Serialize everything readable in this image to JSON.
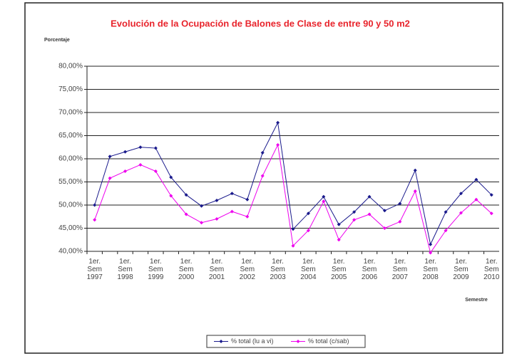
{
  "chart_data": {
    "type": "line",
    "title": "Evolución de la Ocupación de Balones de Clase de entre 90 y 50 m2",
    "y_label": "Porcentaje",
    "x_label": "Semestre",
    "categories": [
      "1er. Sem 1997",
      null,
      "1er. Sem 1998",
      null,
      "1er. Sem 1999",
      null,
      "1er. Sem 2000",
      null,
      "1er. Sem 2001",
      null,
      "1er. Sem 2002",
      null,
      "1er. Sem 2003",
      null,
      "1er. Sem 2004",
      null,
      "1er. Sem 2005",
      null,
      "1er. Sem 2006",
      null,
      "1er. Sem 2007",
      null,
      "1er. Sem 2008",
      null,
      "1er. Sem 2009",
      null,
      "1er. Sem 2010"
    ],
    "series": [
      {
        "name": "% total (lu a vi)",
        "color": "#1a1a8c",
        "values": [
          50.0,
          60.5,
          61.5,
          62.5,
          62.3,
          56.0,
          52.2,
          49.8,
          51.0,
          52.5,
          51.2,
          61.3,
          67.8,
          44.8,
          48.2,
          51.8,
          45.8,
          48.5,
          51.8,
          48.8,
          50.3,
          57.5,
          41.5,
          48.5,
          52.5,
          55.5,
          52.2
        ]
      },
      {
        "name": "% total (c/sab)",
        "color": "#ee00ee",
        "values": [
          46.8,
          55.8,
          57.3,
          58.7,
          57.3,
          52.0,
          48.0,
          46.2,
          47.0,
          48.6,
          47.5,
          56.3,
          63.0,
          41.2,
          44.5,
          50.8,
          42.5,
          46.8,
          48.0,
          45.0,
          46.4,
          53.0,
          39.7,
          44.5,
          48.3,
          51.2,
          48.2
        ]
      }
    ],
    "ylim": [
      40,
      80
    ],
    "yticks": [
      {
        "value": 40,
        "label": "40,00%"
      },
      {
        "value": 45,
        "label": "45,00%"
      },
      {
        "value": 50,
        "label": "50,00%"
      },
      {
        "value": 55,
        "label": "55,00%"
      },
      {
        "value": 60,
        "label": "60,00%"
      },
      {
        "value": 65,
        "label": "65,00%"
      },
      {
        "value": 70,
        "label": "70,00%"
      },
      {
        "value": 75,
        "label": "75,00%"
      },
      {
        "value": 80,
        "label": "80,00%"
      }
    ],
    "grid": true
  }
}
